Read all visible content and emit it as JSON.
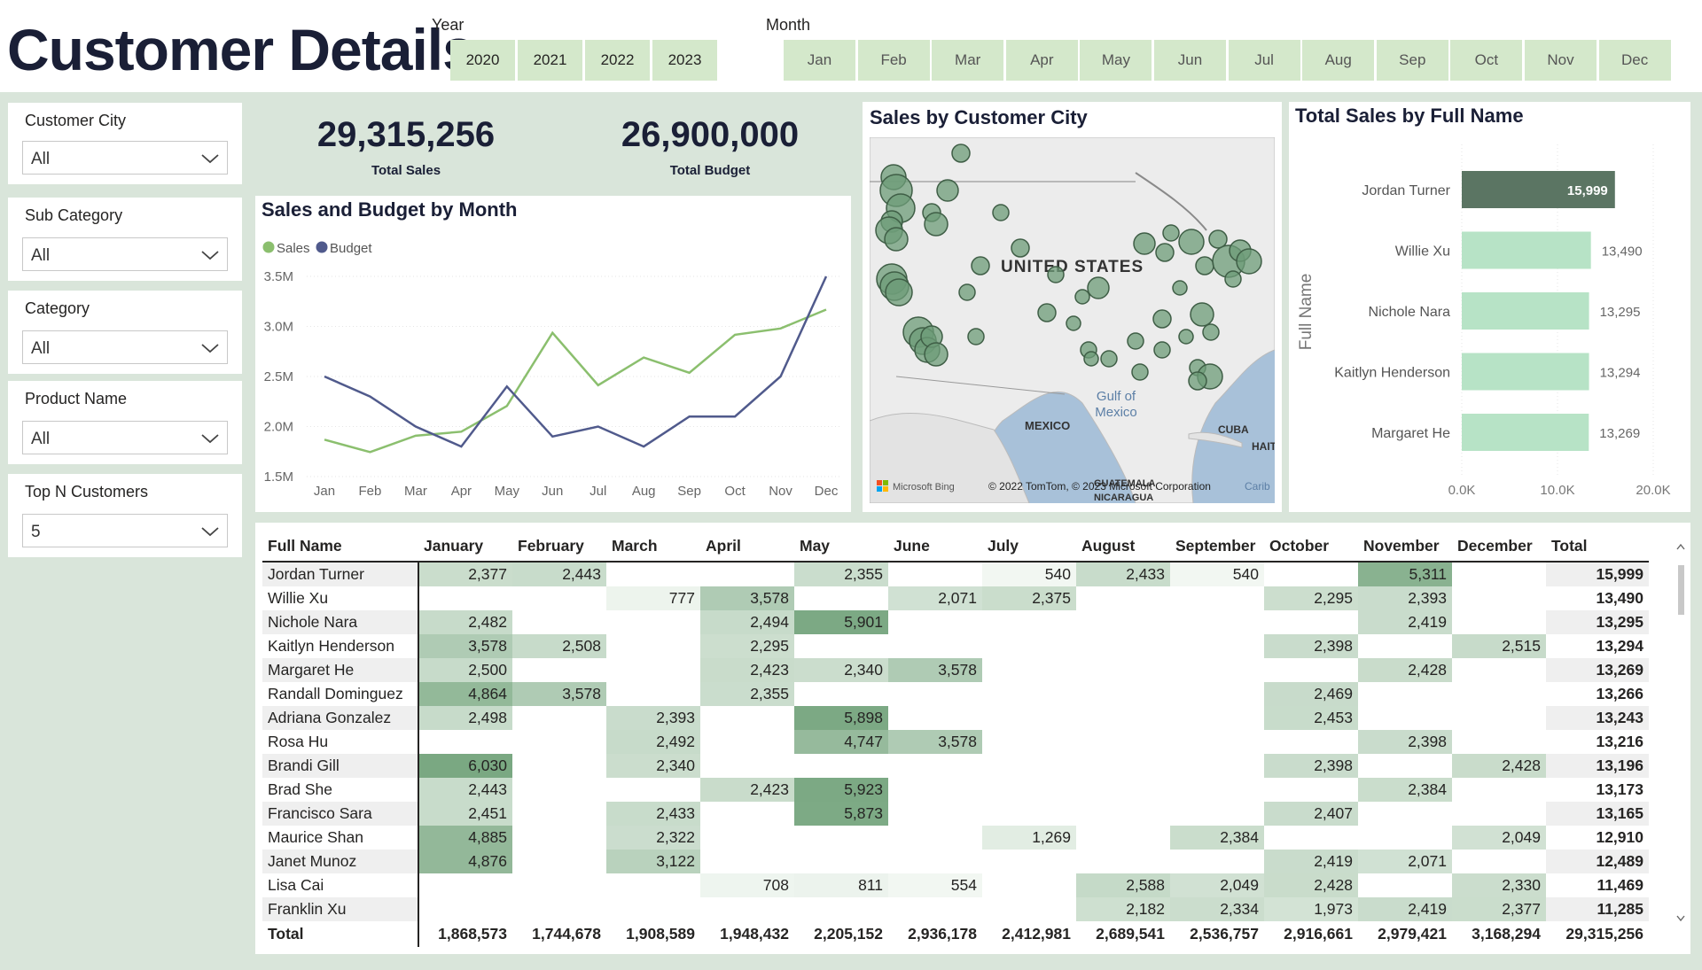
{
  "page_title": "Customer Details",
  "year_slicer": {
    "label": "Year",
    "options": [
      "2020",
      "2021",
      "2022",
      "2023"
    ]
  },
  "month_slicer": {
    "label": "Month",
    "options": [
      "Jan",
      "Feb",
      "Mar",
      "Apr",
      "May",
      "Jun",
      "Jul",
      "Aug",
      "Sep",
      "Oct",
      "Nov",
      "Dec"
    ]
  },
  "filters": [
    {
      "label": "Customer City",
      "value": "All"
    },
    {
      "label": "Sub Category",
      "value": "All"
    },
    {
      "label": "Category",
      "value": "All"
    },
    {
      "label": "Product Name",
      "value": "All"
    },
    {
      "label": "Top N Customers",
      "value": "5"
    }
  ],
  "kpis": {
    "total_sales": {
      "value": "29,315,256",
      "label": "Total Sales"
    },
    "total_budget": {
      "value": "26,900,000",
      "label": "Total Budget"
    }
  },
  "line_chart": {
    "title": "Sales and Budget by Month",
    "legend": [
      "Sales",
      "Budget"
    ],
    "colors": {
      "Sales": "#8bbf6e",
      "Budget": "#505a8c"
    },
    "y_ticks": [
      "3.5M",
      "3.0M",
      "2.5M",
      "2.0M",
      "1.5M"
    ]
  },
  "map": {
    "title": "Sales by Customer City",
    "labels": {
      "country": "UNITED STATES",
      "gulf": "Gulf of\nMexico",
      "mexico": "MEXICO",
      "cuba": "CUBA",
      "haiti": "HAIT",
      "guatemala": "GUATEMALA",
      "nicaragua": "NICARAGUA",
      "carib": "Carib"
    },
    "attribution": "© 2022 TomTom, © 2023 Microsoft Corporation",
    "brand": "Microsoft Bing"
  },
  "bar_chart": {
    "title": "Total Sales by Full Name",
    "axis_title": "Full Name",
    "x_ticks": [
      "0.0K",
      "10.0K",
      "20.0K"
    ]
  },
  "chart_data": [
    {
      "type": "line",
      "title": "Sales and Budget by Month",
      "categories": [
        "Jan",
        "Feb",
        "Mar",
        "Apr",
        "May",
        "Jun",
        "Jul",
        "Aug",
        "Sep",
        "Oct",
        "Nov",
        "Dec"
      ],
      "series": [
        {
          "name": "Sales",
          "values": [
            1868573,
            1744678,
            1908589,
            1948432,
            2205152,
            2936178,
            2412981,
            2689541,
            2536757,
            2916661,
            2979421,
            3168294
          ]
        },
        {
          "name": "Budget",
          "values": [
            2500000,
            2300000,
            2000000,
            1800000,
            2400000,
            1900000,
            2000000,
            1800000,
            2100000,
            2100000,
            2500000,
            3500000
          ]
        }
      ],
      "ylim": [
        1500000,
        3500000
      ],
      "legend_position": "top-left",
      "grid": true
    },
    {
      "type": "bar",
      "orientation": "horizontal",
      "title": "Total Sales by Full Name",
      "categories": [
        "Jordan Turner",
        "Willie Xu",
        "Nichole Nara",
        "Kaitlyn Henderson",
        "Margaret He"
      ],
      "values": [
        15999,
        13490,
        13295,
        13294,
        13269
      ],
      "value_labels": [
        "15,999",
        "13,490",
        "13,295",
        "13,294",
        "13,269"
      ],
      "xlim": [
        0,
        20000
      ],
      "ylabel": "Full Name",
      "highlight_index": 0
    }
  ],
  "table": {
    "columns": [
      "Full Name",
      "January",
      "February",
      "March",
      "April",
      "May",
      "June",
      "July",
      "August",
      "September",
      "October",
      "November",
      "December",
      "Total"
    ],
    "rows": [
      [
        "Jordan Turner",
        "2,377",
        "2,443",
        "",
        "",
        "2,355",
        "",
        "540",
        "2,433",
        "540",
        "",
        "5,311",
        "",
        "15,999"
      ],
      [
        "Willie Xu",
        "",
        "",
        "777",
        "3,578",
        "",
        "2,071",
        "2,375",
        "",
        "",
        "2,295",
        "2,393",
        "",
        "13,490"
      ],
      [
        "Nichole Nara",
        "2,482",
        "",
        "",
        "2,494",
        "5,901",
        "",
        "",
        "",
        "",
        "",
        "2,419",
        "",
        "13,295"
      ],
      [
        "Kaitlyn Henderson",
        "3,578",
        "2,508",
        "",
        "2,295",
        "",
        "",
        "",
        "",
        "",
        "2,398",
        "",
        "2,515",
        "13,294"
      ],
      [
        "Margaret He",
        "2,500",
        "",
        "",
        "2,423",
        "2,340",
        "3,578",
        "",
        "",
        "",
        "",
        "2,428",
        "",
        "13,269"
      ],
      [
        "Randall Dominguez",
        "4,864",
        "3,578",
        "",
        "2,355",
        "",
        "",
        "",
        "",
        "",
        "2,469",
        "",
        "",
        "13,266"
      ],
      [
        "Adriana Gonzalez",
        "2,498",
        "",
        "2,393",
        "",
        "5,898",
        "",
        "",
        "",
        "",
        "2,453",
        "",
        "",
        "13,243"
      ],
      [
        "Rosa Hu",
        "",
        "",
        "2,492",
        "",
        "4,747",
        "3,578",
        "",
        "",
        "",
        "",
        "2,398",
        "",
        "13,216"
      ],
      [
        "Brandi Gill",
        "6,030",
        "",
        "2,340",
        "",
        "",
        "",
        "",
        "",
        "",
        "2,398",
        "",
        "2,428",
        "13,196"
      ],
      [
        "Brad She",
        "2,443",
        "",
        "",
        "2,423",
        "5,923",
        "",
        "",
        "",
        "",
        "",
        "2,384",
        "",
        "13,173"
      ],
      [
        "Francisco Sara",
        "2,451",
        "",
        "2,433",
        "",
        "5,873",
        "",
        "",
        "",
        "",
        "2,407",
        "",
        "",
        "13,165"
      ],
      [
        "Maurice Shan",
        "4,885",
        "",
        "2,322",
        "",
        "",
        "",
        "1,269",
        "",
        "2,384",
        "",
        "",
        "2,049",
        "12,910"
      ],
      [
        "Janet Munoz",
        "4,876",
        "",
        "3,122",
        "",
        "",
        "",
        "",
        "",
        "",
        "2,419",
        "2,071",
        "",
        "12,489"
      ],
      [
        "Lisa Cai",
        "",
        "",
        "",
        "708",
        "811",
        "554",
        "",
        "2,588",
        "2,049",
        "2,428",
        "",
        "2,330",
        "11,469"
      ],
      [
        "Franklin Xu",
        "",
        "",
        "",
        "",
        "",
        "",
        "",
        "2,182",
        "2,334",
        "1,973",
        "2,419",
        "2,377",
        "11,285"
      ]
    ],
    "total_row": [
      "Total",
      "1,868,573",
      "1,744,678",
      "1,908,589",
      "1,948,432",
      "2,205,152",
      "2,936,178",
      "2,412,981",
      "2,689,541",
      "2,536,757",
      "2,916,661",
      "2,979,421",
      "3,168,294",
      "29,315,256"
    ],
    "sort_indicator": "descending"
  },
  "colors": {
    "heading": "#1a1f36",
    "band": "#d9e5da",
    "pill": "#d4e8cb",
    "bar_highlight": "#5b7563",
    "bar_normal": "#b7e3c6",
    "map_bubble": "#6e9c78"
  }
}
